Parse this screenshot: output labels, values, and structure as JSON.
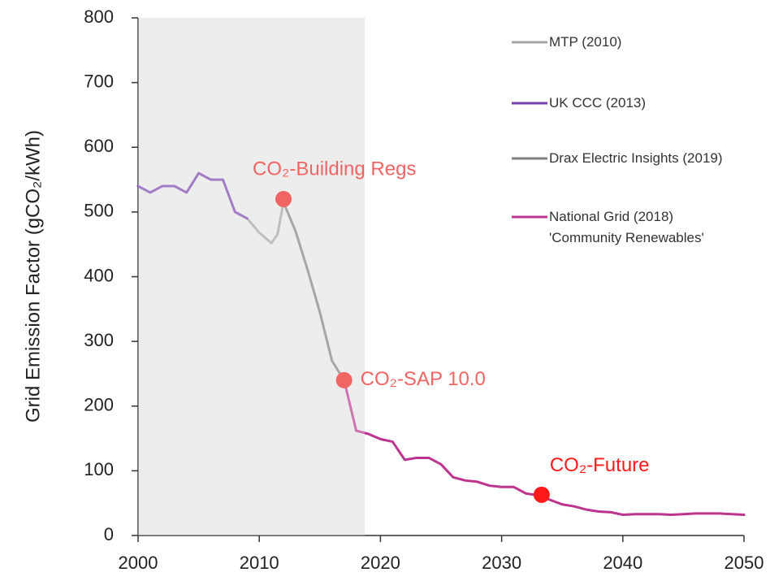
{
  "chart_data": {
    "type": "line",
    "y_label": "Grid Emission Factor (gCO₂/kWh)",
    "xlim": [
      2000,
      2050
    ],
    "xticks": [
      2000,
      2010,
      2020,
      2030,
      2040,
      2050
    ],
    "ylim": [
      0,
      800
    ],
    "yticks": [
      0,
      100,
      200,
      300,
      400,
      500,
      600,
      700,
      800
    ],
    "shaded_xrange": [
      2000,
      2018.7
    ],
    "series": [
      {
        "name": "MTP (2010)",
        "color": "#a6a6a6",
        "x": [
          2009,
          2010,
          2011,
          2011.5,
          2012
        ],
        "values": [
          490,
          468,
          452,
          465,
          515
        ]
      },
      {
        "name": "UK CCC (2013)",
        "color": "#7a3fb0",
        "x": [
          2000,
          2001,
          2002,
          2003,
          2004,
          2005,
          2006,
          2007,
          2008,
          2009
        ],
        "values": [
          540,
          530,
          540,
          540,
          530,
          560,
          550,
          550,
          500,
          490
        ]
      },
      {
        "name": "Drax Electric Insights (2019)",
        "color": "#808080",
        "x": [
          2012,
          2013,
          2014,
          2015,
          2016,
          2017
        ],
        "values": [
          515,
          470,
          410,
          345,
          270,
          240
        ]
      },
      {
        "name": "National Grid (2018)\n'Community Renewables'",
        "color": "#bd348f",
        "x": [
          2017,
          2018,
          2019,
          2020,
          2021,
          2022,
          2023,
          2024,
          2025,
          2026,
          2027,
          2028,
          2029,
          2030,
          2031,
          2032,
          2033,
          2034,
          2035,
          2036,
          2037,
          2038,
          2039,
          2040,
          2041,
          2042,
          2043,
          2044,
          2045,
          2046,
          2047,
          2048,
          2049,
          2050
        ],
        "values": [
          240,
          162,
          157,
          149,
          145,
          117,
          120,
          120,
          110,
          90,
          85,
          83,
          77,
          75,
          75,
          65,
          62,
          55,
          48,
          45,
          40,
          37,
          36,
          32,
          33,
          33,
          33,
          32,
          33,
          34,
          34,
          34,
          33,
          32
        ]
      }
    ],
    "annotations": [
      {
        "text": "CO₂-Building Regs",
        "x": 2012,
        "y": 520,
        "color": "#f06464"
      },
      {
        "text": "CO₂-SAP 10.0",
        "x": 2017,
        "y": 240,
        "color": "#f06464"
      },
      {
        "text": "CO₂-Future",
        "x": 2033.3,
        "y": 63,
        "color": "#ff1a1a"
      }
    ]
  }
}
